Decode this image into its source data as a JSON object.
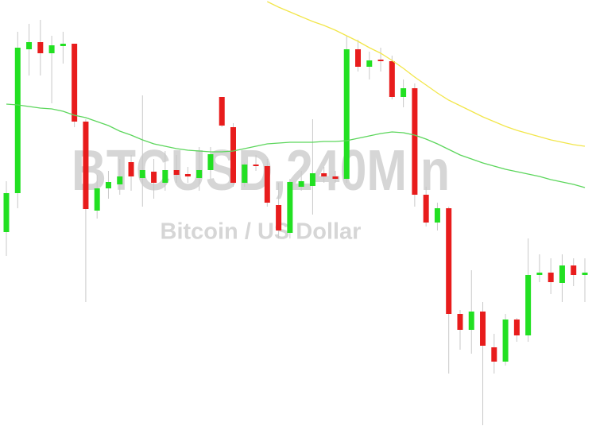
{
  "chart_data": {
    "type": "candlestick",
    "title": "BTCUSD,240M n",
    "subtitle": "Bitcoin / US Dollar",
    "ylim": [
      0,
      536
    ],
    "up_color": "#22e022",
    "down_color": "#e81c1c",
    "wick_color": "#c8c8c8",
    "open": [
      244,
      293,
      474,
      483,
      469,
      478,
      481,
      383,
      271,
      299,
      304,
      332,
      312,
      320,
      306,
      322,
      317,
      312,
      322,
      414,
      376,
      306,
      329,
      327,
      278,
      243,
      301,
      302,
      318,
      314,
      311,
      474,
      452,
      461,
      459,
      414,
      425,
      291,
      256,
      274,
      141,
      121,
      144,
      99,
      81,
      134,
      114,
      190,
      193,
      180,
      202,
      190
    ],
    "high": [
      308,
      496,
      506,
      511,
      491,
      496,
      481,
      386,
      316,
      321,
      336,
      341,
      416,
      336,
      346,
      341,
      326,
      351,
      351,
      414,
      381,
      331,
      341,
      336,
      306,
      311,
      321,
      386,
      326,
      321,
      491,
      486,
      471,
      476,
      466,
      436,
      431,
      301,
      281,
      276,
      146,
      196,
      156,
      116,
      141,
      136,
      236,
      216,
      211,
      216,
      211,
      211
    ],
    "low": [
      214,
      274,
      441,
      441,
      406,
      456,
      376,
      156,
      261,
      286,
      291,
      296,
      276,
      286,
      296,
      306,
      306,
      296,
      311,
      376,
      301,
      301,
      321,
      276,
      236,
      236,
      296,
      266,
      306,
      306,
      306,
      446,
      436,
      446,
      411,
      401,
      276,
      251,
      246,
      66,
      96,
      91,
      1,
      66,
      76,
      106,
      106,
      181,
      166,
      156,
      176,
      156
    ],
    "close": [
      293,
      476,
      483,
      469,
      479,
      481,
      383,
      273,
      299,
      307,
      314,
      314,
      322,
      306,
      322,
      316,
      314,
      322,
      342,
      378,
      306,
      329,
      327,
      281,
      246,
      307,
      308,
      318,
      314,
      311,
      474,
      452,
      460,
      459,
      414,
      425,
      291,
      256,
      274,
      141,
      121,
      144,
      101,
      81,
      134,
      114,
      190,
      193,
      181,
      202,
      190,
      193
    ],
    "series": [
      {
        "color": "#5cd65c",
        "values": [
          405,
          404,
          402,
          400,
          399,
          396,
          391,
          388,
          383,
          378,
          371,
          366,
          360,
          355,
          352,
          349,
          347,
          346,
          345,
          345,
          346,
          349,
          352,
          355,
          356,
          357,
          357,
          357,
          358,
          358,
          359,
          362,
          365,
          368,
          370,
          369,
          366,
          361,
          355,
          348,
          341,
          336,
          331,
          327,
          323,
          320,
          317,
          314,
          310,
          307,
          304,
          300
        ]
      },
      {
        "color": "#f2e64a",
        "values": [
          null,
          null,
          null,
          null,
          null,
          null,
          null,
          null,
          null,
          null,
          null,
          null,
          null,
          null,
          null,
          null,
          null,
          null,
          null,
          null,
          null,
          null,
          null,
          534,
          527,
          521,
          515,
          509,
          504,
          498,
          491,
          484,
          476,
          469,
          460,
          450,
          439,
          429,
          419,
          410,
          403,
          396,
          389,
          383,
          377,
          372,
          368,
          364,
          360,
          357,
          354,
          352
        ]
      }
    ]
  }
}
